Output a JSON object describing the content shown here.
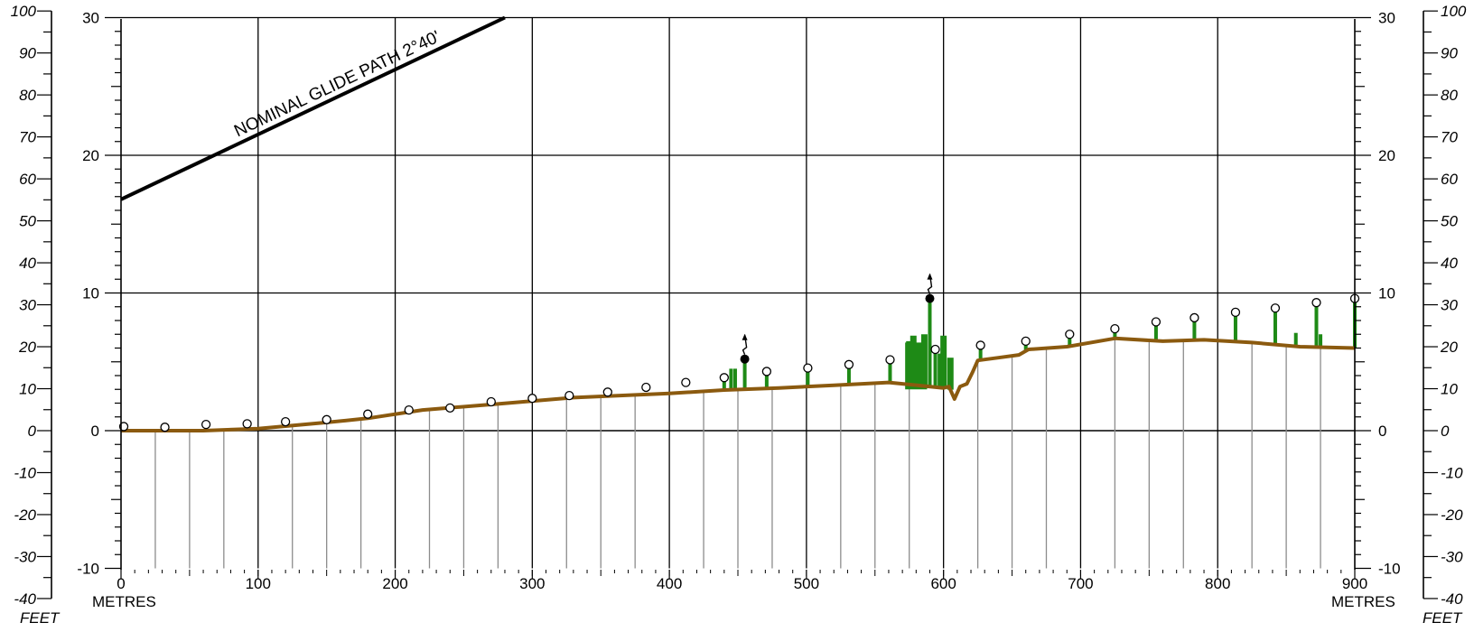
{
  "chart_data": {
    "type": "line",
    "title": "",
    "x_unit_label": "METRES",
    "left_feet_label": "FEET",
    "right_feet_label": "FEET",
    "xlim": [
      0,
      900
    ],
    "ylim_metres": [
      -10,
      30
    ],
    "ylim_feet": [
      -40,
      100
    ],
    "x_ticks": [
      0,
      100,
      200,
      300,
      400,
      500,
      600,
      700,
      800,
      900
    ],
    "y_ticks_metres": [
      -10,
      0,
      10,
      20,
      30
    ],
    "y_ticks_feet": [
      -40,
      -30,
      -20,
      -10,
      0,
      10,
      20,
      30,
      40,
      50,
      60,
      70,
      80,
      90,
      100
    ],
    "grid": true,
    "glide_path": {
      "label": "NOMINAL GLIDE PATH 2°40'",
      "points": [
        [
          0,
          16.8
        ],
        [
          280,
          30
        ]
      ]
    },
    "terrain_profile": {
      "color": "#8B5A0F",
      "points": [
        [
          0,
          0
        ],
        [
          60,
          0
        ],
        [
          100,
          0.15
        ],
        [
          150,
          0.6
        ],
        [
          180,
          0.9
        ],
        [
          220,
          1.5
        ],
        [
          270,
          1.9
        ],
        [
          330,
          2.4
        ],
        [
          400,
          2.7
        ],
        [
          440,
          2.95
        ],
        [
          480,
          3.1
        ],
        [
          520,
          3.3
        ],
        [
          560,
          3.5
        ],
        [
          600,
          3.1
        ],
        [
          604,
          3.2
        ],
        [
          608,
          2.3
        ],
        [
          612,
          3.2
        ],
        [
          617,
          3.4
        ],
        [
          621,
          4.2
        ],
        [
          625,
          5.1
        ],
        [
          640,
          5.3
        ],
        [
          655,
          5.5
        ],
        [
          662,
          5.9
        ],
        [
          690,
          6.1
        ],
        [
          725,
          6.7
        ],
        [
          760,
          6.5
        ],
        [
          790,
          6.6
        ],
        [
          825,
          6.4
        ],
        [
          860,
          6.1
        ],
        [
          900,
          6.0
        ]
      ]
    },
    "obstacle_tops": [
      [
        2,
        0.3
      ],
      [
        32,
        0.25
      ],
      [
        62,
        0.45
      ],
      [
        92,
        0.5
      ],
      [
        120,
        0.65
      ],
      [
        150,
        0.8
      ],
      [
        180,
        1.2
      ],
      [
        210,
        1.5
      ],
      [
        240,
        1.65
      ],
      [
        270,
        2.1
      ],
      [
        300,
        2.35
      ],
      [
        327,
        2.55
      ],
      [
        355,
        2.8
      ],
      [
        383,
        3.15
      ],
      [
        412,
        3.5
      ],
      [
        440,
        3.85
      ],
      [
        471,
        4.3
      ],
      [
        501,
        4.55
      ],
      [
        531,
        4.8
      ],
      [
        561,
        5.15
      ],
      [
        594,
        5.9
      ],
      [
        627,
        6.2
      ],
      [
        660,
        6.5
      ],
      [
        692,
        7.0
      ],
      [
        725,
        7.4
      ],
      [
        755,
        7.9
      ],
      [
        783,
        8.2
      ],
      [
        813,
        8.6
      ],
      [
        842,
        8.9
      ],
      [
        872,
        9.3
      ],
      [
        900,
        9.6
      ]
    ],
    "lighted_obstacles": [
      [
        455,
        5.2
      ],
      [
        590,
        9.6
      ]
    ],
    "vegetation_bars": [
      [
        440,
        3.85
      ],
      [
        445,
        4.5
      ],
      [
        448,
        4.5
      ],
      [
        455,
        5.2
      ],
      [
        471,
        4.3
      ],
      [
        501,
        4.55
      ],
      [
        531,
        4.8
      ],
      [
        561,
        5.15
      ],
      [
        575,
        6.5
      ],
      [
        578,
        6.9
      ],
      [
        582,
        6.0
      ],
      [
        586,
        7.0
      ],
      [
        590,
        9.6
      ],
      [
        594,
        5.9
      ],
      [
        597,
        5.6
      ],
      [
        600,
        6.9
      ],
      [
        605,
        5.3
      ],
      [
        627,
        6.2
      ],
      [
        660,
        6.5
      ],
      [
        692,
        7.0
      ],
      [
        725,
        7.4
      ],
      [
        755,
        7.9
      ],
      [
        783,
        8.2
      ],
      [
        813,
        8.6
      ],
      [
        842,
        8.9
      ],
      [
        857,
        7.1
      ],
      [
        872,
        9.3
      ],
      [
        875,
        7.0
      ],
      [
        900,
        9.6
      ]
    ],
    "metres_label_left": "METRES",
    "metres_label_right": "METRES"
  }
}
